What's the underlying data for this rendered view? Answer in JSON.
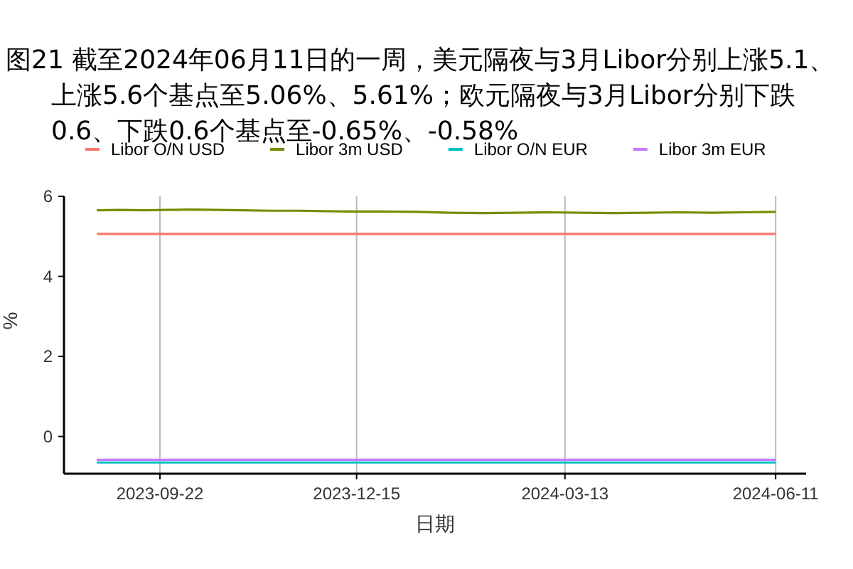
{
  "chart_data": {
    "type": "line",
    "title": "图21  截至2024年06月11日的一周，美元隔夜与3月Libor分别上涨5.1、上涨5.6个基点至5.06%、5.61%；欧元隔夜与3月Libor分别下跌0.6、下跌0.6个基点至-0.65%、-0.58%",
    "xlabel": "日期",
    "ylabel": "%",
    "legend": "top",
    "grid": "x",
    "xlim": [
      "2023-08-12",
      "2024-06-24"
    ],
    "xticks": [
      "2023-09-22",
      "2023-12-15",
      "2024-03-13",
      "2024-06-11"
    ],
    "ylim": [
      -0.93,
      6
    ],
    "yticks": [
      0,
      2,
      4,
      6
    ],
    "series": [
      {
        "name": "Libor O/N USD",
        "color": "#f8766d",
        "x": [
          "2023-08-26",
          "2023-12-01",
          "2024-03-01",
          "2024-06-11"
        ],
        "values": [
          5.06,
          5.06,
          5.06,
          5.06
        ]
      },
      {
        "name": "Libor 3m USD",
        "color": "#7a8c00",
        "x": [
          "2023-08-26",
          "2023-09-05",
          "2023-09-15",
          "2023-09-25",
          "2023-10-05",
          "2023-10-16",
          "2023-10-27",
          "2023-11-08",
          "2023-11-20",
          "2023-12-01",
          "2023-12-12",
          "2023-12-26",
          "2024-01-10",
          "2024-01-24",
          "2024-02-07",
          "2024-02-21",
          "2024-03-06",
          "2024-03-20",
          "2024-04-03",
          "2024-04-17",
          "2024-05-01",
          "2024-05-15",
          "2024-05-29",
          "2024-06-11"
        ],
        "values": [
          5.65,
          5.66,
          5.65,
          5.66,
          5.67,
          5.66,
          5.65,
          5.64,
          5.64,
          5.63,
          5.62,
          5.62,
          5.61,
          5.59,
          5.58,
          5.59,
          5.6,
          5.59,
          5.58,
          5.59,
          5.6,
          5.59,
          5.6,
          5.61
        ]
      },
      {
        "name": "Libor O/N EUR",
        "color": "#00bfc4",
        "x": [
          "2023-08-26",
          "2023-12-01",
          "2024-03-01",
          "2024-06-11"
        ],
        "values": [
          -0.65,
          -0.65,
          -0.65,
          -0.65
        ]
      },
      {
        "name": "Libor 3m EUR",
        "color": "#c77cff",
        "x": [
          "2023-08-26",
          "2023-12-01",
          "2024-03-01",
          "2024-06-11"
        ],
        "values": [
          -0.58,
          -0.58,
          -0.58,
          -0.58
        ]
      }
    ]
  }
}
